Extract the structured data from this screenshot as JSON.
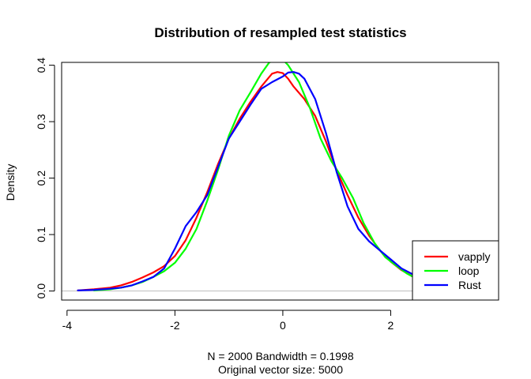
{
  "chart_data": {
    "type": "line",
    "title": "Distribution of resampled test statistics",
    "xlabel": "N = 2000   Bandwidth = 0.1998",
    "xlabel2": "Original vector size: 5000",
    "ylabel": "Density",
    "xlim": [
      -4.1,
      4.0
    ],
    "ylim": [
      -0.016,
      0.405
    ],
    "xticks": [
      -4,
      -2,
      0,
      2
    ],
    "yticks": [
      0.0,
      0.1,
      0.2,
      0.3,
      0.4
    ],
    "ytick_labels": [
      "0.0",
      "0.1",
      "0.2",
      "0.3",
      "0.4"
    ],
    "baseline": 0,
    "baseline_color": "#bebebe",
    "legend_position": "bottom-right",
    "series": [
      {
        "name": "vapply",
        "color": "#ff0000",
        "x": [
          -3.8,
          -3.5,
          -3.2,
          -3.0,
          -2.8,
          -2.6,
          -2.4,
          -2.2,
          -2.0,
          -1.8,
          -1.6,
          -1.4,
          -1.2,
          -1.0,
          -0.8,
          -0.6,
          -0.4,
          -0.2,
          -0.1,
          0.0,
          0.1,
          0.2,
          0.4,
          0.6,
          0.8,
          1.0,
          1.2,
          1.4,
          1.6,
          1.8,
          2.0,
          2.2,
          2.4
        ],
        "y": [
          0.001,
          0.003,
          0.006,
          0.01,
          0.016,
          0.024,
          0.033,
          0.044,
          0.062,
          0.09,
          0.13,
          0.175,
          0.225,
          0.27,
          0.305,
          0.335,
          0.362,
          0.385,
          0.388,
          0.386,
          0.376,
          0.362,
          0.34,
          0.31,
          0.265,
          0.213,
          0.17,
          0.13,
          0.098,
          0.072,
          0.052,
          0.037,
          0.026
        ]
      },
      {
        "name": "loop",
        "color": "#00ff00",
        "x": [
          -3.5,
          -3.2,
          -3.0,
          -2.8,
          -2.6,
          -2.4,
          -2.2,
          -2.0,
          -1.8,
          -1.6,
          -1.4,
          -1.2,
          -1.0,
          -0.8,
          -0.6,
          -0.4,
          -0.25,
          -0.15,
          0.0,
          0.1,
          0.3,
          0.5,
          0.7,
          0.9,
          1.1,
          1.3,
          1.5,
          1.7,
          1.9,
          2.1,
          2.3,
          2.4
        ],
        "y": [
          0.001,
          0.003,
          0.006,
          0.01,
          0.016,
          0.025,
          0.035,
          0.05,
          0.075,
          0.11,
          0.16,
          0.215,
          0.275,
          0.32,
          0.352,
          0.385,
          0.405,
          0.408,
          0.41,
          0.4,
          0.37,
          0.325,
          0.27,
          0.23,
          0.2,
          0.165,
          0.12,
          0.085,
          0.06,
          0.045,
          0.031,
          0.026
        ]
      },
      {
        "name": "Rust",
        "color": "#0000ff",
        "x": [
          -3.8,
          -3.5,
          -3.2,
          -3.0,
          -2.8,
          -2.6,
          -2.4,
          -2.2,
          -2.0,
          -1.8,
          -1.6,
          -1.4,
          -1.2,
          -1.0,
          -0.8,
          -0.6,
          -0.4,
          -0.2,
          0.0,
          0.1,
          0.2,
          0.3,
          0.4,
          0.6,
          0.8,
          1.0,
          1.2,
          1.4,
          1.6,
          1.8,
          2.0,
          2.2,
          2.4
        ],
        "y": [
          0.001,
          0.002,
          0.004,
          0.006,
          0.01,
          0.017,
          0.025,
          0.04,
          0.075,
          0.115,
          0.14,
          0.17,
          0.22,
          0.27,
          0.3,
          0.33,
          0.358,
          0.37,
          0.38,
          0.387,
          0.388,
          0.385,
          0.376,
          0.34,
          0.28,
          0.21,
          0.15,
          0.11,
          0.088,
          0.072,
          0.056,
          0.04,
          0.03
        ]
      }
    ]
  }
}
